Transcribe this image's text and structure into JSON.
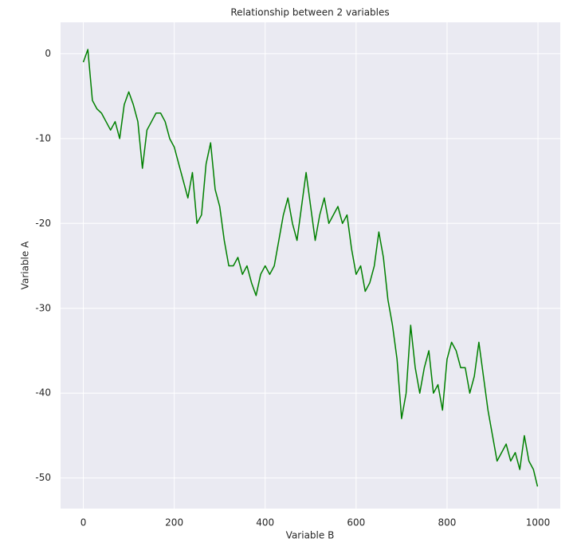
{
  "chart_data": {
    "type": "line",
    "title": "Relationship between 2 variables",
    "xlabel": "Variable B",
    "ylabel": "Variable A",
    "x": [
      0,
      10,
      20,
      30,
      40,
      50,
      60,
      70,
      80,
      90,
      100,
      110,
      120,
      130,
      140,
      150,
      160,
      170,
      180,
      190,
      200,
      210,
      220,
      230,
      240,
      250,
      260,
      270,
      280,
      290,
      300,
      310,
      320,
      330,
      340,
      350,
      360,
      370,
      380,
      390,
      400,
      410,
      420,
      430,
      440,
      450,
      460,
      470,
      480,
      490,
      500,
      510,
      520,
      530,
      540,
      550,
      560,
      570,
      580,
      590,
      600,
      610,
      620,
      630,
      640,
      650,
      660,
      670,
      680,
      690,
      700,
      710,
      720,
      730,
      740,
      750,
      760,
      770,
      780,
      790,
      800,
      810,
      820,
      830,
      840,
      850,
      860,
      870,
      880,
      890,
      900,
      910,
      920,
      930,
      940,
      950,
      960,
      970,
      980,
      990,
      999
    ],
    "series": [
      {
        "name": "Variable A",
        "color": "#008000",
        "values": [
          -1,
          0.5,
          -5.5,
          -6.5,
          -7,
          -8,
          -9,
          -8,
          -10,
          -6,
          -4.5,
          -6,
          -8,
          -13.5,
          -9,
          -8,
          -7,
          -7,
          -8,
          -10,
          -11,
          -13,
          -15,
          -17,
          -14,
          -20,
          -19,
          -13,
          -10.5,
          -16,
          -18,
          -22,
          -25,
          -25,
          -24,
          -26,
          -25,
          -27,
          -28.5,
          -26,
          -25,
          -26,
          -25,
          -22,
          -19,
          -17,
          -20,
          -22,
          -18,
          -14,
          -18,
          -22,
          -19,
          -17,
          -20,
          -19,
          -18,
          -20,
          -19,
          -23,
          -26,
          -25,
          -28,
          -27,
          -25,
          -21,
          -24,
          -29,
          -32,
          -36,
          -43,
          -40,
          -32,
          -37,
          -40,
          -37,
          -35,
          -40,
          -39,
          -42,
          -36,
          -34,
          -35,
          -37,
          -37,
          -40,
          -38,
          -34,
          -38,
          -42,
          -45,
          -48,
          -47,
          -46,
          -48,
          -47,
          -49,
          -45,
          -48,
          -49,
          -51
        ]
      }
    ],
    "xlim": [
      -50,
      1049
    ],
    "ylim": [
      -53.6,
      3.7
    ],
    "xticks": [
      0,
      200,
      400,
      600,
      800,
      1000
    ],
    "yticks": [
      0,
      -10,
      -20,
      -30,
      -40,
      -50
    ],
    "grid": true
  }
}
